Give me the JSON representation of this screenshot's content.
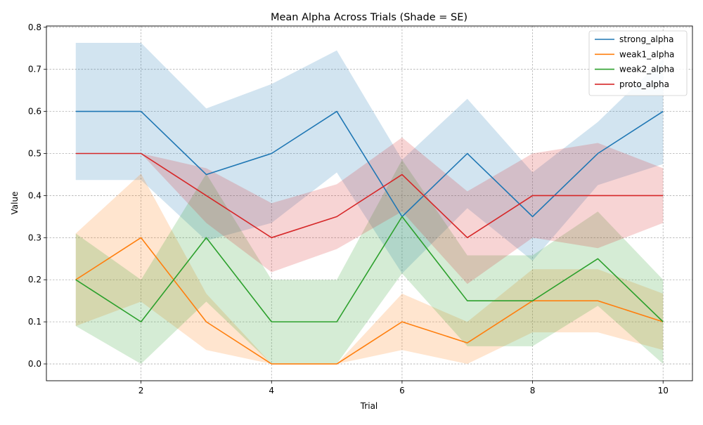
{
  "chart_data": {
    "type": "line",
    "title": "Mean Alpha Across Trials (Shade = SE)",
    "xlabel": "Trial",
    "ylabel": "Value",
    "xlim": [
      0.55,
      10.45
    ],
    "ylim": [
      -0.04,
      0.803
    ],
    "x_ticks": [
      "2",
      "4",
      "6",
      "8",
      "10"
    ],
    "y_ticks": [
      "0.0",
      "0.1",
      "0.2",
      "0.3",
      "0.4",
      "0.5",
      "0.6",
      "0.7",
      "0.8"
    ],
    "grid": true,
    "legend_position": "top-right",
    "x": [
      1,
      2,
      3,
      4,
      5,
      6,
      7,
      8,
      9,
      10
    ],
    "series": [
      {
        "name": "strong_alpha",
        "color": "#1f77b4",
        "values": [
          0.6,
          0.6,
          0.45,
          0.5,
          0.6,
          0.35,
          0.5,
          0.35,
          0.5,
          0.6
        ],
        "lower": [
          0.437,
          0.437,
          0.293,
          0.335,
          0.455,
          0.215,
          0.37,
          0.245,
          0.425,
          0.475
        ],
        "upper": [
          0.763,
          0.763,
          0.607,
          0.665,
          0.745,
          0.485,
          0.63,
          0.455,
          0.575,
          0.725
        ]
      },
      {
        "name": "weak1_alpha",
        "color": "#ff7f0e",
        "values": [
          0.2,
          0.3,
          0.1,
          0.0,
          0.0,
          0.1,
          0.05,
          0.15,
          0.15,
          0.1
        ],
        "lower": [
          0.09,
          0.148,
          0.033,
          0.0,
          0.0,
          0.033,
          0.0,
          0.075,
          0.075,
          0.033
        ],
        "upper": [
          0.31,
          0.452,
          0.167,
          0.0,
          0.0,
          0.167,
          0.1,
          0.225,
          0.225,
          0.167
        ]
      },
      {
        "name": "weak2_alpha",
        "color": "#2ca02c",
        "values": [
          0.2,
          0.1,
          0.3,
          0.1,
          0.1,
          0.35,
          0.15,
          0.15,
          0.25,
          0.1
        ],
        "lower": [
          0.09,
          0.0,
          0.148,
          0.0,
          0.0,
          0.215,
          0.042,
          0.042,
          0.138,
          0.0
        ],
        "upper": [
          0.31,
          0.2,
          0.452,
          0.2,
          0.2,
          0.485,
          0.258,
          0.258,
          0.362,
          0.2
        ]
      },
      {
        "name": "proto_alpha",
        "color": "#d62728",
        "values": [
          0.5,
          0.5,
          0.4,
          0.3,
          0.35,
          0.45,
          0.3,
          0.4,
          0.4,
          0.4
        ],
        "lower": [
          0.5,
          0.5,
          0.335,
          0.218,
          0.273,
          0.362,
          0.19,
          0.3,
          0.275,
          0.335
        ],
        "upper": [
          0.5,
          0.5,
          0.465,
          0.382,
          0.427,
          0.538,
          0.41,
          0.5,
          0.525,
          0.465
        ]
      }
    ]
  }
}
